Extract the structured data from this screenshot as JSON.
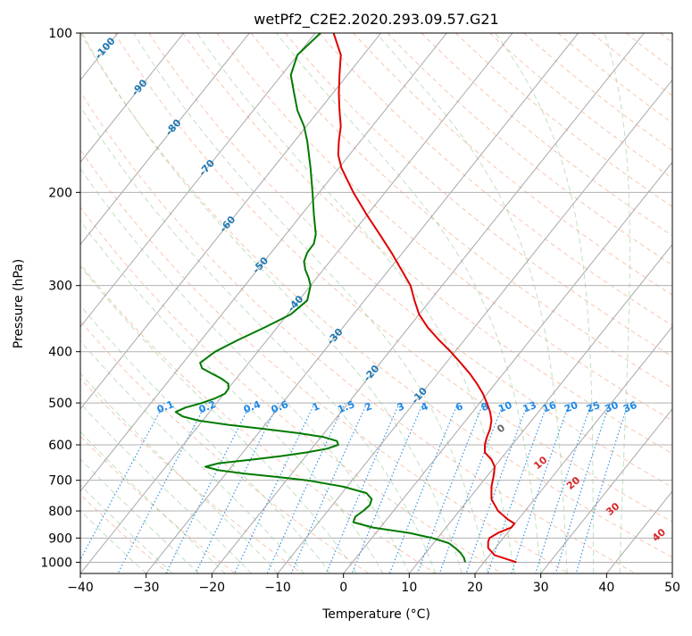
{
  "chart_data": {
    "type": "line",
    "title": "wetPf2_C2E2.2020.293.09.57.G21",
    "xlabel": "Temperature (°C)",
    "ylabel": "Pressure (hPa)",
    "xlim": [
      -40,
      50
    ],
    "ylim": [
      1050,
      100
    ],
    "yscale": "log",
    "grid": true,
    "x_ticks": [
      -40,
      -30,
      -20,
      -10,
      0,
      10,
      20,
      30,
      40,
      50
    ],
    "y_ticks": [
      100,
      200,
      300,
      400,
      500,
      600,
      700,
      800,
      900,
      1000
    ],
    "colors": {
      "temperature": "#e00000",
      "dewpoint": "#007a00",
      "isotherms": "#999999",
      "dry_adiabats": "#f4a07c",
      "moist_adiabats": "#8cc88c",
      "mixing_ratio": "#1e88e5",
      "isotherm_labels": "#1f78b4",
      "moist_labels": "#d62728",
      "zero_label": "#666666"
    },
    "series": [
      {
        "role": "temperature",
        "p": [
          1000,
          970,
          940,
          915,
          900,
          880,
          860,
          845,
          830,
          800,
          760,
          720,
          690,
          660,
          640,
          620,
          600,
          580,
          560,
          540,
          520,
          500,
          480,
          460,
          440,
          420,
          400,
          380,
          360,
          340,
          320,
          300,
          280,
          260,
          240,
          220,
          200,
          180,
          170,
          160,
          150,
          140,
          130,
          120,
          110,
          100
        ],
        "x": [
          26.3,
          23.0,
          22.0,
          22.0,
          22.2,
          23.5,
          25.5,
          26.0,
          25.0,
          23.5,
          22.5,
          22.5,
          22.8,
          23.0,
          22.5,
          21.5,
          21.5,
          21.8,
          22.3,
          22.5,
          22.3,
          21.8,
          21.2,
          20.3,
          19.2,
          17.8,
          16.3,
          14.5,
          12.8,
          11.5,
          10.8,
          10.2,
          8.8,
          7.3,
          5.5,
          3.5,
          1.5,
          -0.3,
          -0.8,
          -0.7,
          -0.4,
          -0.6,
          -0.7,
          -0.6,
          -0.4,
          -1.5
        ]
      },
      {
        "role": "dewpoint",
        "p": [
          1000,
          980,
          960,
          940,
          920,
          900,
          880,
          860,
          840,
          820,
          800,
          780,
          760,
          740,
          720,
          700,
          690,
          680,
          670,
          660,
          650,
          640,
          630,
          620,
          610,
          600,
          590,
          580,
          570,
          560,
          550,
          540,
          530,
          520,
          510,
          500,
          490,
          480,
          470,
          460,
          450,
          440,
          430,
          420,
          400,
          380,
          360,
          340,
          320,
          300,
          290,
          280,
          270,
          260,
          250,
          240,
          220,
          200,
          180,
          160,
          150,
          140,
          130,
          120,
          110,
          100
        ],
        "x": [
          18.5,
          18.3,
          17.8,
          17.0,
          16.0,
          13.5,
          10.0,
          4.5,
          1.5,
          1.8,
          3.0,
          4.0,
          4.3,
          3.5,
          0.0,
          -5.5,
          -10.0,
          -15.0,
          -19.0,
          -21.0,
          -19.0,
          -14.0,
          -9.5,
          -5.5,
          -2.5,
          -0.8,
          -1.0,
          -3.0,
          -7.0,
          -12.0,
          -17.5,
          -22.0,
          -24.5,
          -25.5,
          -24.0,
          -21.5,
          -19.5,
          -18.0,
          -17.5,
          -17.5,
          -18.5,
          -20.0,
          -21.5,
          -21.8,
          -19.5,
          -16.0,
          -12.0,
          -8.0,
          -5.5,
          -5.0,
          -5.3,
          -5.8,
          -6.0,
          -5.5,
          -4.5,
          -4.2,
          -4.5,
          -4.7,
          -5.0,
          -5.5,
          -6.0,
          -7.0,
          -7.5,
          -8.0,
          -7.0,
          -3.5
        ]
      }
    ],
    "isotherm_labels": [
      {
        "t": -100,
        "text": "-100"
      },
      {
        "t": -90,
        "text": "-90"
      },
      {
        "t": -80,
        "text": "-80"
      },
      {
        "t": -70,
        "text": "-70"
      },
      {
        "t": -60,
        "text": "-60"
      },
      {
        "t": -50,
        "text": "-50"
      },
      {
        "t": -40,
        "text": "-40"
      },
      {
        "t": -30,
        "text": "-30"
      },
      {
        "t": -20,
        "text": "-20"
      },
      {
        "t": -10,
        "text": "-10"
      }
    ],
    "mixing_ratio_labels": [
      "0.1",
      "0.2",
      "0.4",
      "0.6",
      "1",
      "1.5",
      "2",
      "3",
      "4",
      "6",
      "8",
      "10",
      "13",
      "16",
      "20",
      "25",
      "30",
      "36"
    ],
    "moist_adiabat_labels": [
      "0",
      "10",
      "20",
      "30",
      "40"
    ]
  }
}
